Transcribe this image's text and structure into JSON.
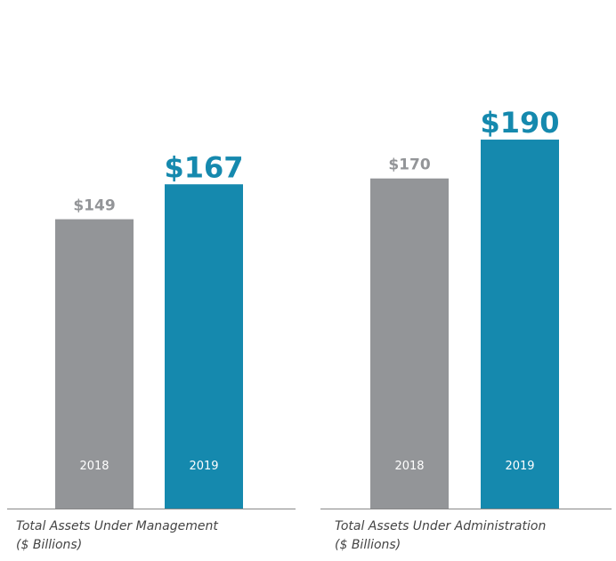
{
  "colors": {
    "prior_year": "#939598",
    "current_year": "#1589AE",
    "axis": "#888888",
    "year_label": "#ffffff"
  },
  "chart_data": [
    {
      "type": "bar",
      "title": "Total Assets Under Management",
      "subtitle": "($ Billions)",
      "categories": [
        "2018",
        "2019"
      ],
      "values": [
        149,
        167
      ],
      "value_labels": [
        "$149",
        "$167"
      ],
      "ylim": [
        0,
        200
      ],
      "grid": false,
      "legend": "none"
    },
    {
      "type": "bar",
      "title": "Total Assets Under Administration",
      "subtitle": "($ Billions)",
      "categories": [
        "2018",
        "2019"
      ],
      "values": [
        170,
        190
      ],
      "value_labels": [
        "$170",
        "$190"
      ],
      "ylim": [
        0,
        200
      ],
      "grid": false,
      "legend": "none"
    }
  ]
}
